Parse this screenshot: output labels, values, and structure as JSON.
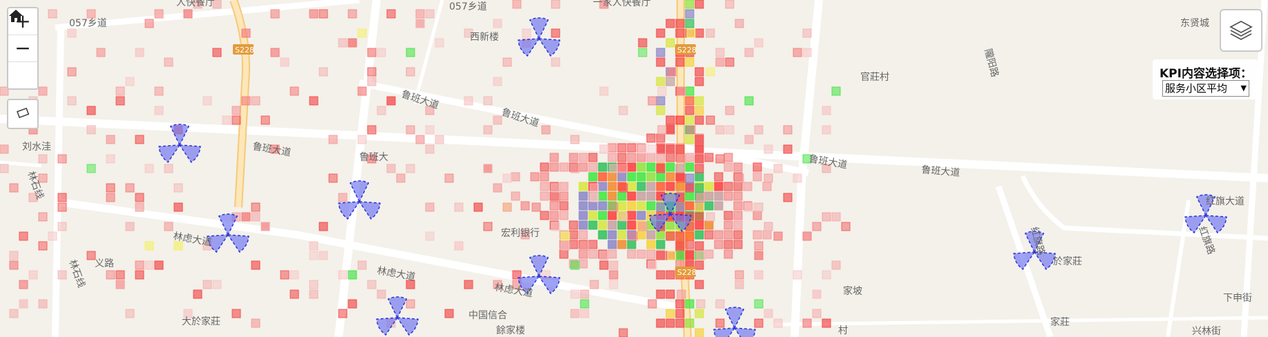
{
  "map": {
    "labels": [
      {
        "t": "057乡道"
      },
      {
        "t": "057乡道"
      },
      {
        "t": "人快餐厅"
      },
      {
        "t": "一家人快餐厅"
      },
      {
        "t": "西新楼"
      },
      {
        "t": "东贤城"
      },
      {
        "t": "S228"
      },
      {
        "t": "S228"
      },
      {
        "t": "S228"
      },
      {
        "t": "鲁班大道"
      },
      {
        "t": "鲁班大道"
      },
      {
        "t": "鲁班大道"
      },
      {
        "t": "鲁班大道"
      },
      {
        "t": "鲁班大道"
      },
      {
        "t": "鲁班大"
      },
      {
        "t": "刘水洼"
      },
      {
        "t": "林石线"
      },
      {
        "t": "林石线"
      },
      {
        "t": "林虑大道"
      },
      {
        "t": "林虑大道"
      },
      {
        "t": "林虑大道"
      },
      {
        "t": "义路"
      },
      {
        "t": "大於家莊"
      },
      {
        "t": "中国信合"
      },
      {
        "t": "餘家楼"
      },
      {
        "t": "官莊村"
      },
      {
        "t": "隴阳路"
      },
      {
        "t": "家坡"
      },
      {
        "t": "於家莊"
      },
      {
        "t": "下申街"
      },
      {
        "t": "兴林街"
      },
      {
        "t": "家莊"
      },
      {
        "t": "村"
      },
      {
        "t": "红旗大道"
      },
      {
        "t": "红旗路"
      },
      {
        "t": "宏利银行"
      },
      {
        "t": "红旗路"
      }
    ]
  },
  "controls": {
    "zoom_in": "+",
    "zoom_out": "−",
    "home_icon": "home-icon",
    "measure_icon": "ruler-icon",
    "layers_icon": "layers-icon"
  },
  "kpi": {
    "title": "KPI内容选择项：",
    "selected": "服务小区平均",
    "arrow": "▼"
  },
  "colors": {
    "road": "#ffffff",
    "highway": "#fbe0a8",
    "sector_fill": "#6b72f0",
    "sector_stroke": "#2b34d8",
    "grid_red": "#f24a4a",
    "grid_green": "#44e344",
    "grid_yellow": "#f4f05a"
  }
}
